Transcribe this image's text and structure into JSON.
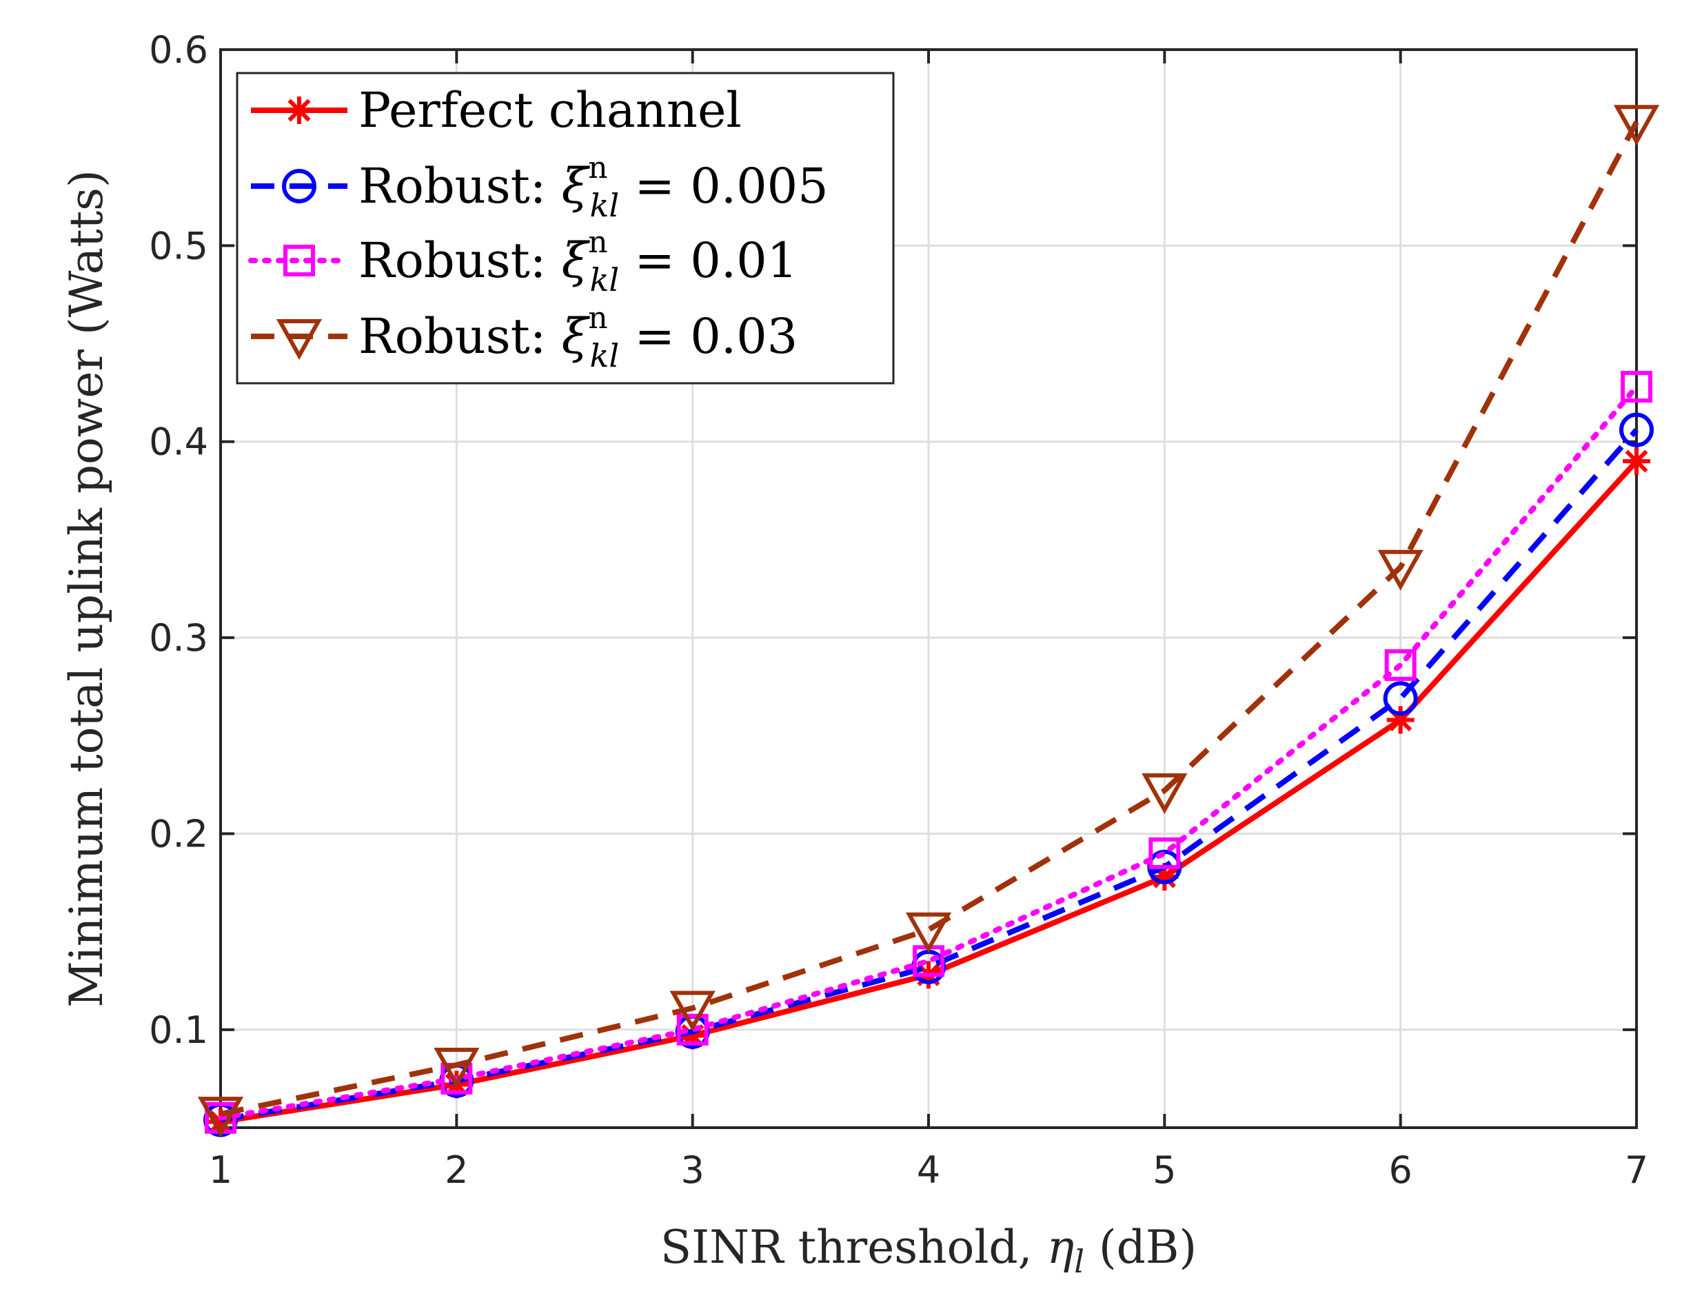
{
  "chart_data": {
    "type": "line",
    "xlabel": "SINR threshold, ",
    "xlabel_symbol": "η",
    "xlabel_subscript": "l",
    "xlabel_unit": " (dB)",
    "ylabel": "Minimum total uplink power (Watts)",
    "xlim": [
      1,
      7
    ],
    "ylim": [
      0.05,
      0.6
    ],
    "x_ticks": [
      1,
      2,
      3,
      4,
      5,
      6,
      7
    ],
    "y_ticks": [
      0.1,
      0.2,
      0.3,
      0.4,
      0.5,
      0.6
    ],
    "x_tick_labels": [
      "1",
      "2",
      "3",
      "4",
      "5",
      "6",
      "7"
    ],
    "y_tick_labels": [
      "0.1",
      "0.2",
      "0.3",
      "0.4",
      "0.5",
      "0.6"
    ],
    "grid": true,
    "legend_position": "top-left",
    "x": [
      1,
      2,
      3,
      4,
      5,
      6,
      7
    ],
    "series": [
      {
        "name": "Perfect channel",
        "legend_prefix": "Perfect channel",
        "legend_value": "",
        "values": [
          0.053,
          0.072,
          0.097,
          0.128,
          0.178,
          0.258,
          0.39
        ],
        "color": "#ff0000",
        "dash": "solid",
        "marker": "asterisk"
      },
      {
        "name": "Robust: ξkl^n = 0.005",
        "legend_prefix": "Robust: ",
        "legend_value": " = 0.005",
        "values": [
          0.054,
          0.074,
          0.099,
          0.132,
          0.183,
          0.269,
          0.406
        ],
        "color": "#0000ff",
        "dash": "dashed",
        "marker": "circle"
      },
      {
        "name": "Robust: ξkl^n = 0.01",
        "legend_prefix": "Robust: ",
        "legend_value": " = 0.01",
        "values": [
          0.055,
          0.075,
          0.1,
          0.135,
          0.19,
          0.286,
          0.428
        ],
        "color": "#ff00ff",
        "dash": "dotted",
        "marker": "square"
      },
      {
        "name": "Robust: ξkl^n = 0.03",
        "legend_prefix": "Robust: ",
        "legend_value": " = 0.03",
        "values": [
          0.057,
          0.082,
          0.111,
          0.151,
          0.222,
          0.336,
          0.563
        ],
        "color": "#a0320a",
        "dash": "dashed",
        "marker": "triangle-down"
      }
    ],
    "legend_symbol": "ξ",
    "legend_subscript": "kl",
    "legend_superscript": "n"
  }
}
